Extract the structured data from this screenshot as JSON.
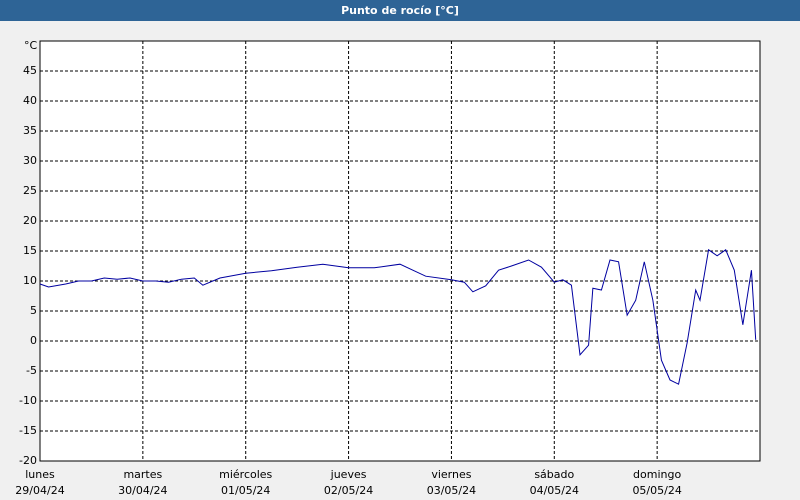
{
  "chart_data": {
    "type": "line",
    "title": "Punto de rocío [°C]",
    "y_unit": "°C",
    "x": [
      0,
      2,
      6,
      9,
      12,
      15,
      18,
      21,
      24,
      27,
      30,
      33,
      36,
      38,
      42,
      48,
      54,
      60,
      66,
      72,
      78,
      84,
      87,
      90,
      96,
      99,
      101,
      104,
      107,
      110,
      114,
      117,
      120,
      122,
      124,
      126,
      128,
      129,
      131,
      133,
      135,
      137,
      139,
      141,
      143,
      145,
      147,
      149,
      151,
      153,
      154,
      156,
      158,
      160,
      162,
      164,
      166,
      167
    ],
    "series": [
      {
        "name": "Punto de rocío",
        "color": "#0000a0",
        "values": [
          9.5,
          9,
          9.5,
          10,
          10,
          10.5,
          10.3,
          10.5,
          10,
          10,
          9.8,
          10.3,
          10.5,
          9.3,
          10.5,
          11.3,
          11.7,
          12.3,
          12.8,
          12.2,
          12.2,
          12.8,
          11.8,
          10.8,
          10.2,
          9.8,
          8.2,
          9.2,
          11.8,
          12.5,
          13.5,
          12.3,
          9.8,
          10.2,
          9.3,
          -2.3,
          -0.7,
          8.8,
          8.5,
          13.5,
          13.2,
          4.3,
          6.8,
          13.2,
          6.8,
          -3.2,
          -6.5,
          -7.2,
          -0.3,
          8.5,
          6.8,
          15.2,
          14.2,
          15.2,
          11.8,
          2.7,
          11.8,
          0.2
        ]
      }
    ],
    "xlim": [
      0,
      168
    ],
    "xticks": [
      {
        "value": 0,
        "label": "lunes"
      },
      {
        "value": 24,
        "label": "martes"
      },
      {
        "value": 48,
        "label": "miércoles"
      },
      {
        "value": 72,
        "label": "jueves"
      },
      {
        "value": 96,
        "label": "viernes"
      },
      {
        "value": 120,
        "label": "sábado"
      },
      {
        "value": 144,
        "label": "domingo"
      }
    ],
    "xtick_dates": [
      "29/04/24",
      "30/04/24",
      "01/05/24",
      "02/05/24",
      "03/05/24",
      "04/05/24",
      "05/05/24"
    ],
    "ylim": [
      -20,
      50
    ],
    "yticks": [
      -20,
      -15,
      -10,
      -5,
      0,
      5,
      10,
      15,
      20,
      25,
      30,
      35,
      40,
      45
    ],
    "grid": true
  }
}
